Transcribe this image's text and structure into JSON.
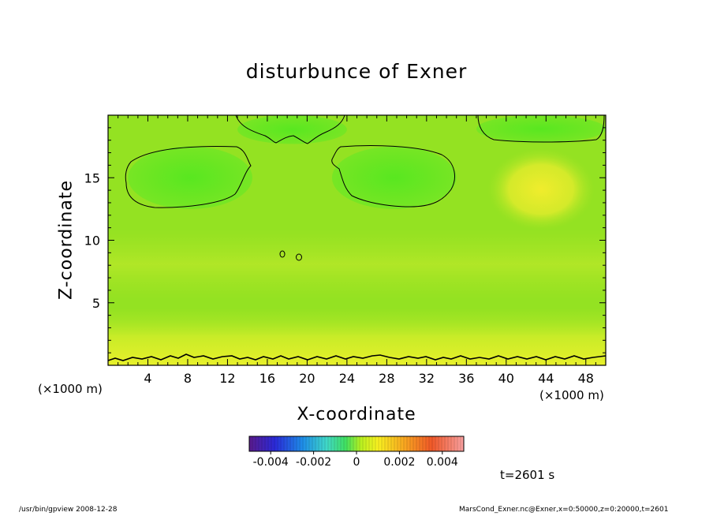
{
  "title": "disturbunce of Exner",
  "footer": {
    "left": "/usr/bin/gpview   2008-12-28",
    "right": "MarsCond_Exner.nc@Exner,x=0:50000,z=0:20000,t=2601"
  },
  "time_label": "t=2601 s",
  "colors": {
    "background": "#8fe020",
    "contour_line": "#000000"
  },
  "chart_data": {
    "type": "heatmap",
    "title": "disturbunce of Exner",
    "xlabel": "X-coordinate",
    "ylabel": "Z-coordinate",
    "x_unit": "(×1000 m)",
    "y_unit": "(×1000 m)",
    "xlim": [
      0,
      50
    ],
    "ylim": [
      0,
      20
    ],
    "x_ticks": [
      4,
      8,
      12,
      16,
      20,
      24,
      28,
      32,
      36,
      40,
      44,
      48
    ],
    "y_ticks": [
      5,
      10,
      15
    ],
    "colorbar": {
      "range": [
        -0.005,
        0.005
      ],
      "tick_labels": [
        "-0.004",
        "-0.002",
        "0",
        "0.002",
        "0.004"
      ],
      "tick_values": [
        -0.004,
        -0.002,
        0,
        0.002,
        0.004
      ]
    },
    "time": "t=2601 s",
    "features": [
      {
        "name": "left-low-region",
        "x_range": [
          2,
          14.5
        ],
        "z_range": [
          12.5,
          17.5
        ],
        "value": -0.0006
      },
      {
        "name": "right-low-region",
        "x_range": [
          22.5,
          35
        ],
        "z_range": [
          12.5,
          17.5
        ],
        "value": -0.0006
      },
      {
        "name": "top-center-low-region",
        "x_range": [
          13,
          24
        ],
        "z_range": [
          17.7,
          20
        ],
        "value": -0.0005
      },
      {
        "name": "top-right-low-region",
        "x_range": [
          37,
          50
        ],
        "z_range": [
          17.8,
          20
        ],
        "value": -0.0005
      },
      {
        "name": "right-high-region",
        "x_range": [
          39,
          47
        ],
        "z_range": [
          11.5,
          16
        ],
        "value": 0.0006
      }
    ]
  }
}
